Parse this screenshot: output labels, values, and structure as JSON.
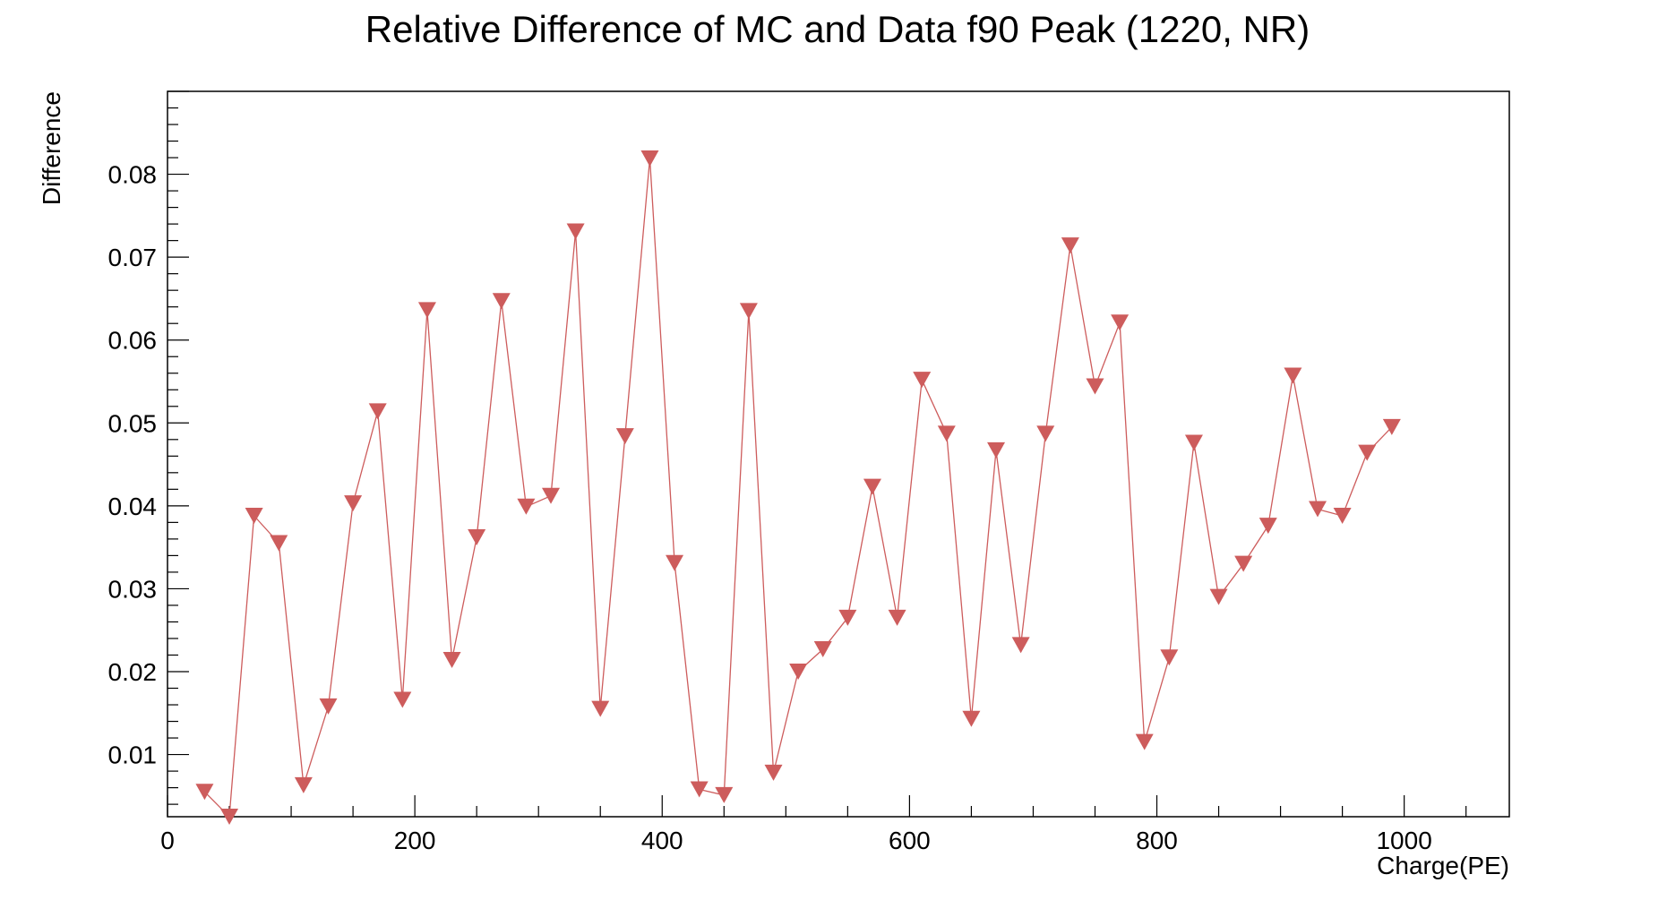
{
  "chart_data": {
    "type": "line",
    "title": "Relative Difference of MC and Data f90 Peak (1220, NR)",
    "xlabel": "Charge(PE)",
    "ylabel": "Difference",
    "xlim": [
      0,
      1085
    ],
    "ylim": [
      0.0025,
      0.09
    ],
    "x_ticks": [
      0,
      200,
      400,
      600,
      800,
      1000
    ],
    "x_tick_labels": [
      "0",
      "200",
      "400",
      "600",
      "800",
      "1000"
    ],
    "y_ticks": [
      0.01,
      0.02,
      0.03,
      0.04,
      0.05,
      0.06,
      0.07,
      0.08
    ],
    "y_tick_labels": [
      "0.01",
      "0.02",
      "0.03",
      "0.04",
      "0.05",
      "0.06",
      "0.07",
      "0.08"
    ],
    "grid": false,
    "legend": "none",
    "marker": "triangle-down",
    "series": [
      {
        "color": "#cd5c5c",
        "x": [
          30,
          50,
          70,
          90,
          110,
          130,
          150,
          170,
          190,
          210,
          230,
          250,
          270,
          290,
          310,
          330,
          350,
          370,
          390,
          410,
          430,
          450,
          470,
          490,
          510,
          530,
          550,
          570,
          590,
          610,
          630,
          650,
          670,
          690,
          710,
          730,
          750,
          770,
          790,
          810,
          830,
          850,
          870,
          890,
          910,
          930,
          950,
          970,
          990
        ],
        "y": [
          0.0055,
          0.0025,
          0.0388,
          0.0355,
          0.0063,
          0.0158,
          0.0403,
          0.0514,
          0.0166,
          0.0636,
          0.0214,
          0.0362,
          0.0647,
          0.0399,
          0.0412,
          0.0731,
          0.0155,
          0.0484,
          0.0819,
          0.0331,
          0.0058,
          0.0051,
          0.0635,
          0.0078,
          0.02,
          0.0227,
          0.0265,
          0.0423,
          0.0265,
          0.0552,
          0.0487,
          0.0143,
          0.0467,
          0.0232,
          0.0487,
          0.0714,
          0.0544,
          0.0621,
          0.0115,
          0.0217,
          0.0476,
          0.029,
          0.033,
          0.0376,
          0.0557,
          0.0396,
          0.0388,
          0.0464,
          0.0495
        ]
      }
    ]
  }
}
